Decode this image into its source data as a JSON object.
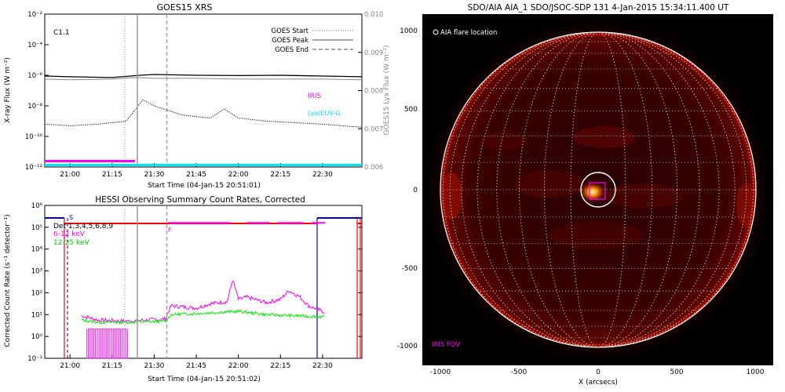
{
  "goes": {
    "title": "GOES15 XRS",
    "class_label": "C1.1",
    "ylabel_left": "X-ray Flux (W m⁻²)",
    "ylabel_right": "GOES15 Lyx Flux (W m⁻²)",
    "xlabel": "Start Time (04-Jan-15 20:51:01)",
    "legend": [
      "GOES Start",
      "GOES Peak",
      "GOES End"
    ],
    "iris_label": "IRIS",
    "lyalpha_label": "Lyα/EUV-G",
    "colors": {
      "iris": "#ff00ff",
      "lya": "#00e5ff"
    }
  },
  "hessi": {
    "title": "HESSI Observing Summary Count Rates, Corrected",
    "xlabel": "Start Time (04-Jan-15 20:51:02)",
    "ylabel": "Corrected Count Rate (s⁻¹ detector⁻¹)",
    "legend": [
      "Det 1,3,4,5,6,8,9",
      "6-12 keV",
      "12-25 keV"
    ],
    "marker_s": "S",
    "marker_f": "F",
    "colors": {
      "low": "#ff00ff",
      "high": "#00ee00",
      "atten": "#ff0000",
      "night": "#0000cc"
    }
  },
  "aia": {
    "title": "SDO/AIA AIA_1 SDO/JSOC-SDP 131   4-Jan-2015 15:34:11.400 UT",
    "legend": "AIA flare location",
    "fov_label": "IRIS FOV",
    "xlabel": "X (arcsecs)",
    "yticks": [
      "1000",
      "500",
      "0",
      "-500",
      "-1000"
    ],
    "xticks": [
      "-1000",
      "-500",
      "0",
      "500",
      "1000"
    ]
  },
  "chart_data": [
    {
      "type": "line",
      "title": "GOES15 XRS",
      "xlabel": "Start Time (04-Jan-15 20:51:01)",
      "ylabel": "X-ray Flux (W m-2)",
      "y2label": "GOES15 Lyx Flux (W m-2)",
      "x_ticks": [
        "21:00",
        "21:15",
        "21:30",
        "21:45",
        "22:00",
        "22:15",
        "22:30"
      ],
      "y_ticks": [
        "10⁻²",
        "10⁻⁴",
        "10⁻⁶",
        "10⁻⁸",
        "10⁻¹⁰",
        "10⁻¹²"
      ],
      "y2_ticks": [
        "0.010",
        "0.009",
        "0.008",
        "0.007",
        "0.006"
      ],
      "yscale": "log",
      "ylim_exp": [
        -12,
        -2
      ],
      "y2lim": [
        0.006,
        0.01
      ],
      "xlim_min": [
        -9,
        104
      ],
      "series": [
        {
          "name": "",
          "x_min": [
            -9,
            0,
            15,
            25,
            30,
            45,
            60,
            75,
            90,
            104
          ],
          "log_y": [
            -6.05,
            -6.1,
            -6.15,
            -6.0,
            -5.95,
            -6.0,
            -6.02,
            -6.0,
            -6.05,
            -6.1
          ]
        },
        {
          "name": "",
          "x_min": [
            -9,
            0,
            15,
            23,
            30,
            45,
            60,
            75,
            90,
            104
          ],
          "log_y": [
            -6.25,
            -6.3,
            -6.25,
            -6.15,
            -6.2,
            -6.2,
            -6.25,
            -6.25,
            -6.25,
            -6.3
          ]
        },
        {
          "name": "",
          "x_min": [
            -9,
            0,
            10,
            20,
            26,
            30,
            40,
            50,
            55,
            60,
            70,
            80,
            90,
            104
          ],
          "log_y": [
            -9.2,
            -9.3,
            -9.2,
            -9.0,
            -7.6,
            -8.0,
            -8.6,
            -8.8,
            -8.2,
            -8.8,
            -9.0,
            -9.1,
            -9.2,
            -9.4
          ]
        }
      ],
      "markers": {
        "GOES Start": 19.5,
        "GOES Peak": 24,
        "GOES End": 34.5
      }
    },
    {
      "type": "line",
      "title": "HESSI Observing Summary Count Rates, Corrected",
      "xlabel": "Start Time (04-Jan-15 20:51:02)",
      "ylabel": "Corrected Count Rate (s-1 detector-1)",
      "x_ticks": [
        "21:00",
        "21:15",
        "21:30",
        "21:45",
        "22:00",
        "22:15",
        "22:30"
      ],
      "y_ticks": [
        "10⁶",
        "10⁵",
        "10⁴",
        "10³",
        "10²",
        "10¹",
        "10⁰",
        "10⁻¹"
      ],
      "yscale": "log",
      "ylim_exp": [
        -1,
        6
      ],
      "xlim_min": [
        -9,
        104
      ],
      "series": [
        {
          "name": "6-12 keV",
          "x_min": [
            4,
            10,
            20,
            34,
            36,
            45,
            50,
            56,
            58,
            60,
            63,
            70,
            75,
            78,
            82,
            85,
            91
          ],
          "log_y": [
            0.95,
            0.75,
            0.7,
            0.8,
            1.4,
            1.3,
            1.5,
            1.6,
            2.6,
            1.7,
            1.8,
            1.55,
            1.7,
            2.1,
            1.8,
            1.4,
            1.1
          ]
        },
        {
          "name": "12-25 keV",
          "x_min": [
            4,
            10,
            20,
            34,
            36,
            45,
            60,
            70,
            80,
            91
          ],
          "log_y": [
            0.75,
            0.65,
            0.65,
            0.7,
            1.0,
            1.05,
            1.15,
            1.0,
            0.95,
            0.9
          ]
        }
      ]
    }
  ]
}
